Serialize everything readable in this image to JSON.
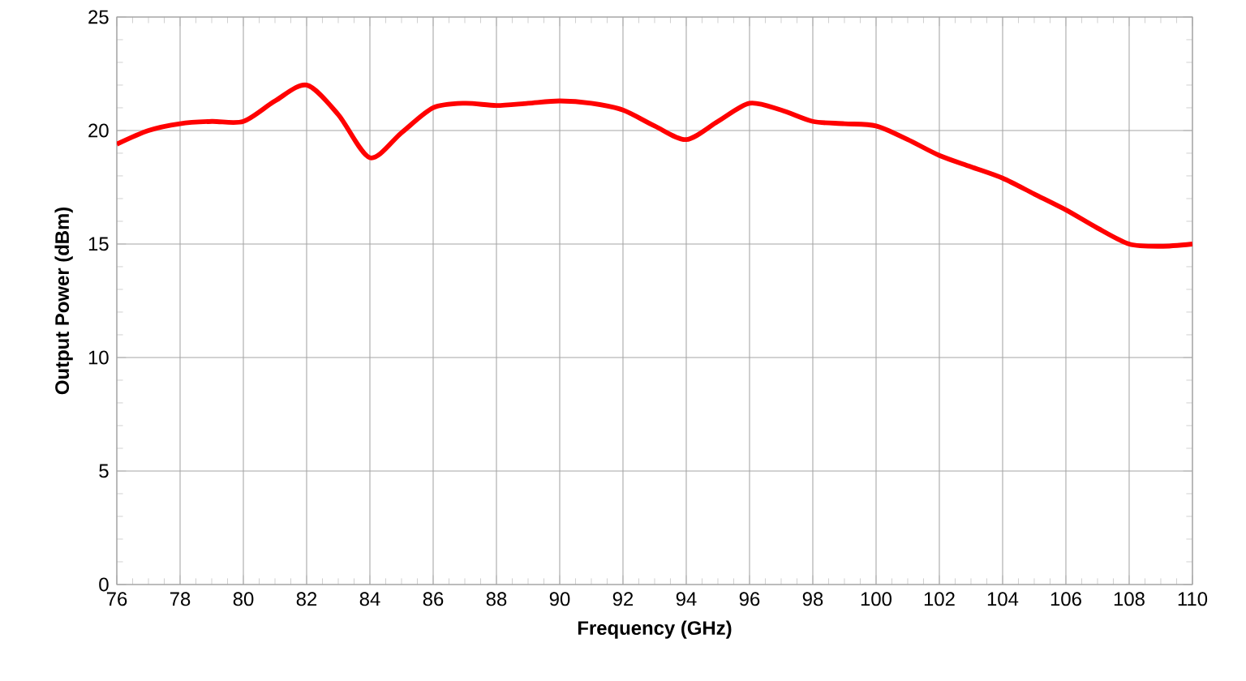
{
  "chart_data": {
    "type": "line",
    "xlabel": "Frequency (GHz)",
    "ylabel": "Output Power (dBm)",
    "x": [
      76,
      77,
      78,
      79,
      80,
      81,
      82,
      83,
      84,
      85,
      86,
      87,
      88,
      89,
      90,
      91,
      92,
      93,
      94,
      95,
      96,
      97,
      98,
      99,
      100,
      101,
      102,
      103,
      104,
      105,
      106,
      107,
      108,
      109,
      110
    ],
    "series": [
      {
        "color": "#ff0000",
        "values": [
          19.4,
          20.0,
          20.3,
          20.4,
          20.4,
          21.3,
          22.0,
          20.7,
          18.8,
          19.9,
          21.0,
          21.2,
          21.1,
          21.2,
          21.3,
          21.2,
          20.9,
          20.2,
          19.6,
          20.4,
          21.2,
          20.9,
          20.4,
          20.3,
          20.2,
          19.6,
          18.9,
          18.4,
          17.9,
          17.2,
          16.5,
          15.7,
          15.0,
          14.9,
          15.0
        ]
      }
    ],
    "xlim": [
      76,
      110
    ],
    "ylim": [
      0,
      25
    ],
    "xticks": [
      76,
      78,
      80,
      82,
      84,
      86,
      88,
      90,
      92,
      94,
      96,
      98,
      100,
      102,
      104,
      106,
      108,
      110
    ],
    "yticks": [
      0,
      5,
      10,
      15,
      20,
      25
    ],
    "grid": true,
    "line_style": "solid",
    "marker": "none"
  }
}
